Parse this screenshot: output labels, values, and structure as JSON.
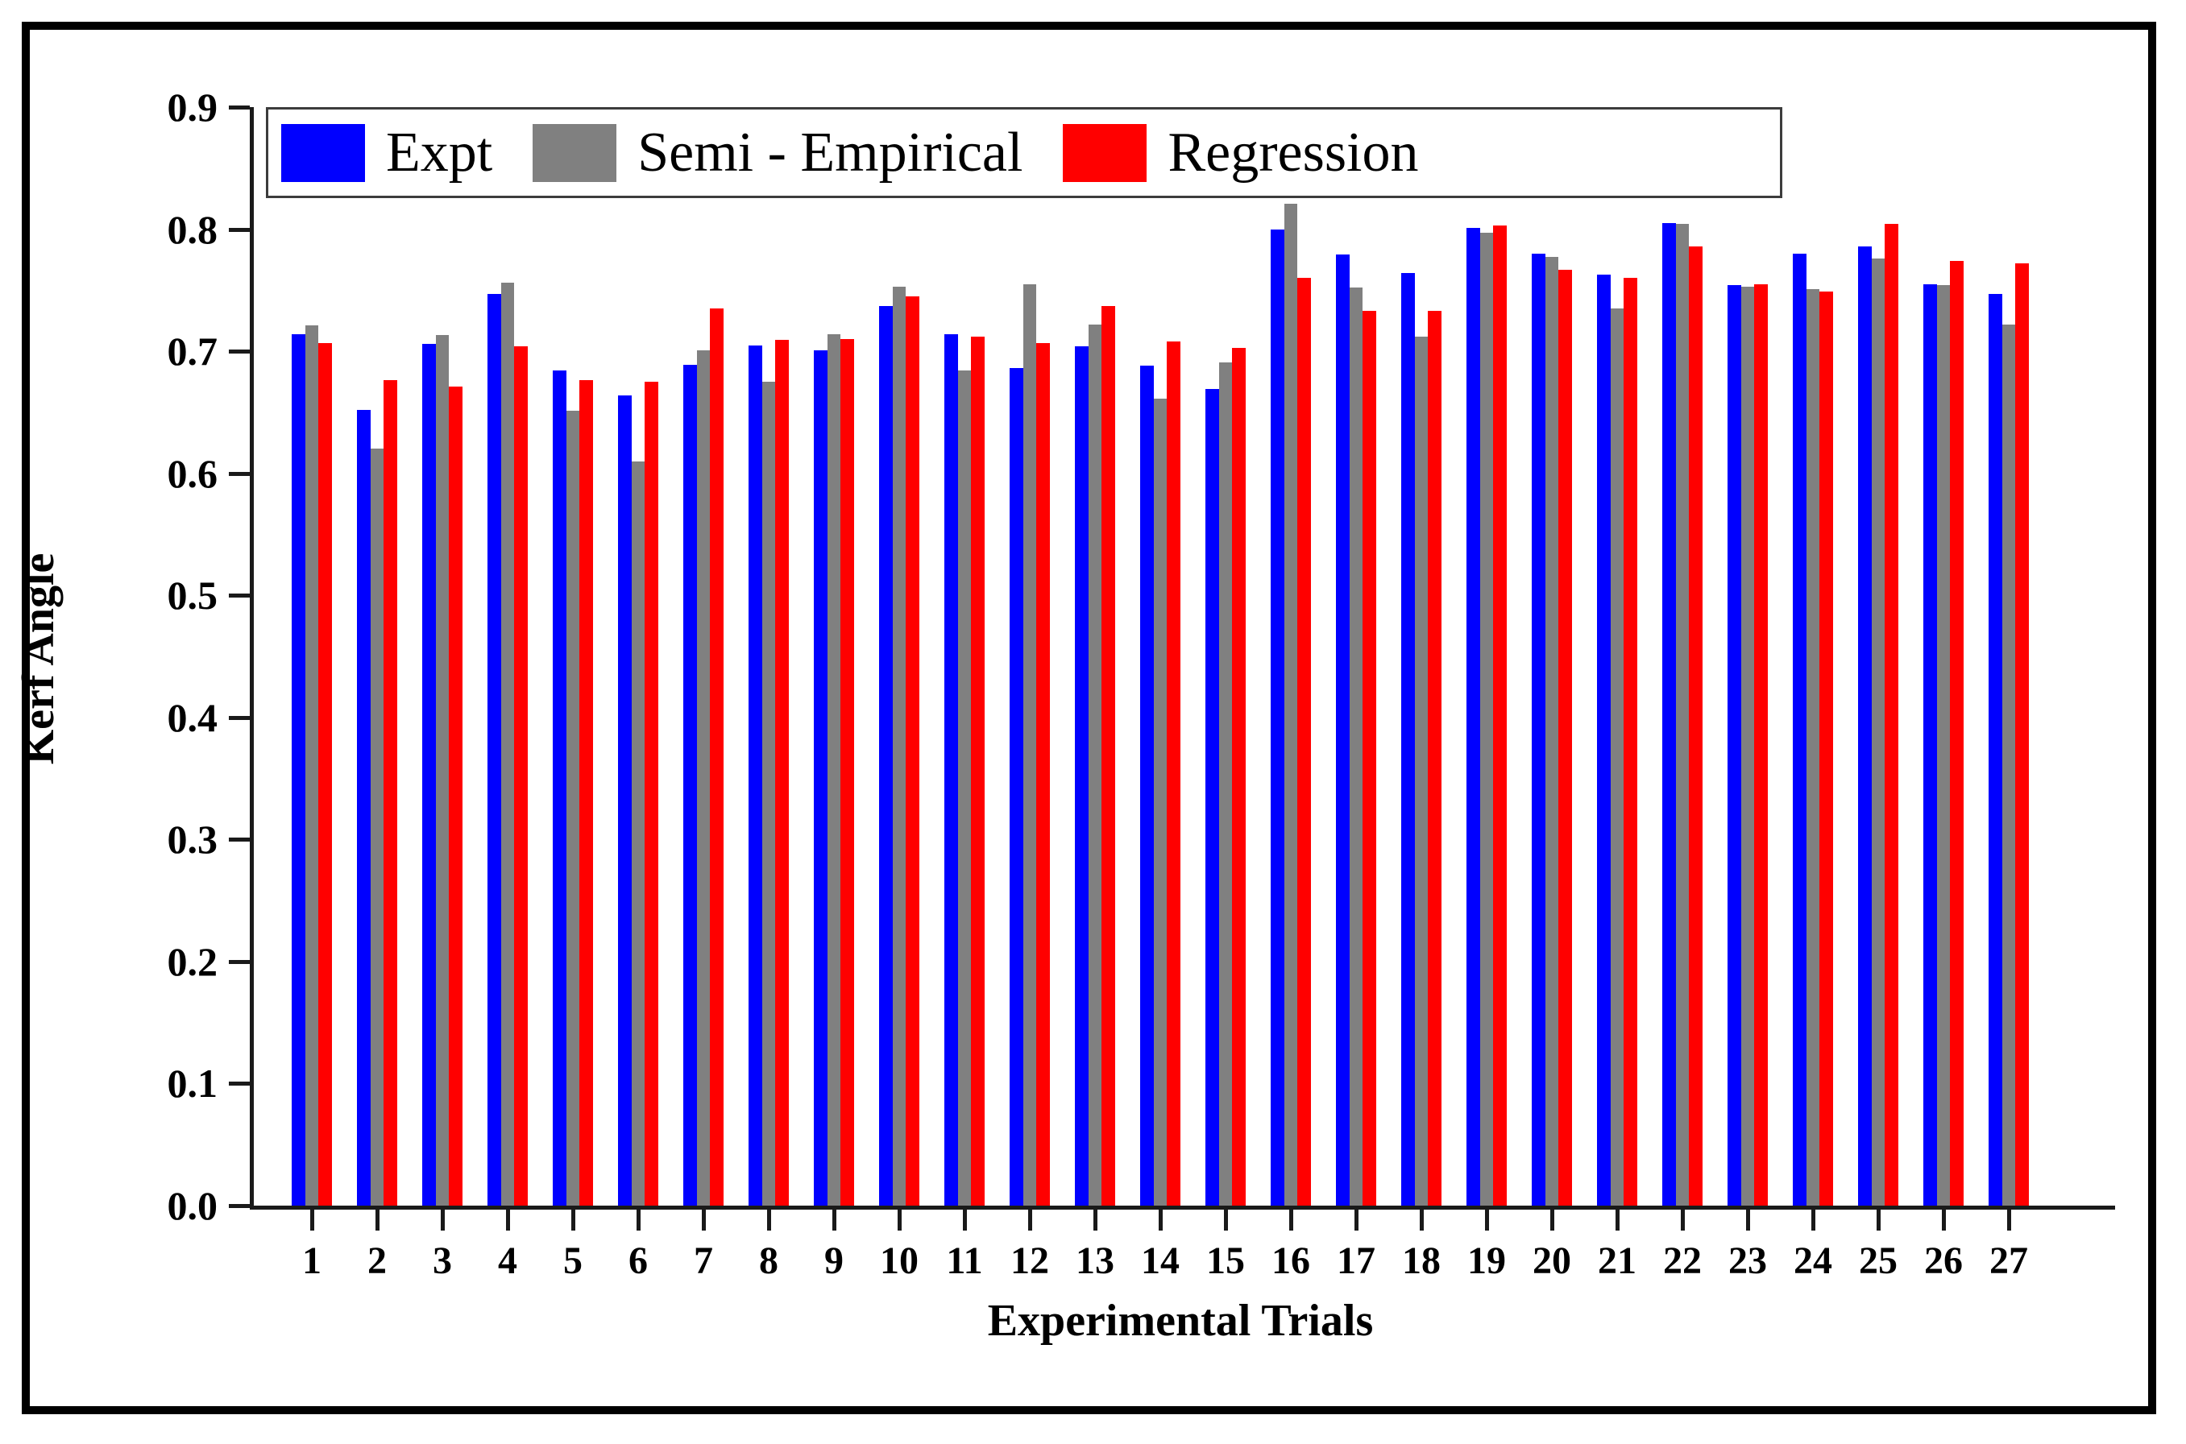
{
  "chart_data": {
    "type": "bar",
    "title": "",
    "xlabel": "Experimental Trials",
    "ylabel": "Kerf Angle",
    "categories": [
      "1",
      "2",
      "3",
      "4",
      "5",
      "6",
      "7",
      "8",
      "9",
      "10",
      "11",
      "12",
      "13",
      "14",
      "15",
      "16",
      "17",
      "18",
      "19",
      "20",
      "21",
      "22",
      "23",
      "24",
      "25",
      "26",
      "27"
    ],
    "series": [
      {
        "name": "Expt",
        "color": "#0000ff",
        "values": [
          0.714,
          0.652,
          0.706,
          0.747,
          0.684,
          0.664,
          0.689,
          0.705,
          0.701,
          0.737,
          0.714,
          0.686,
          0.704,
          0.688,
          0.669,
          0.8,
          0.779,
          0.764,
          0.801,
          0.78,
          0.763,
          0.805,
          0.754,
          0.78,
          0.786,
          0.755,
          0.747
        ]
      },
      {
        "name": "Semi - Empirical",
        "color": "#808080",
        "values": [
          0.721,
          0.62,
          0.713,
          0.756,
          0.651,
          0.61,
          0.701,
          0.675,
          0.714,
          0.753,
          0.684,
          0.755,
          0.722,
          0.661,
          0.691,
          0.821,
          0.752,
          0.712,
          0.797,
          0.777,
          0.735,
          0.804,
          0.753,
          0.751,
          0.776,
          0.754,
          0.722
        ]
      },
      {
        "name": "Regression",
        "color": "#ff0000",
        "values": [
          0.707,
          0.676,
          0.671,
          0.704,
          0.676,
          0.675,
          0.735,
          0.709,
          0.71,
          0.745,
          0.712,
          0.707,
          0.737,
          0.708,
          0.703,
          0.76,
          0.733,
          0.733,
          0.803,
          0.767,
          0.76,
          0.786,
          0.755,
          0.749,
          0.804,
          0.774,
          0.772
        ]
      }
    ],
    "ylim": [
      0.0,
      0.9
    ],
    "yticks": [
      "0.0",
      "0.1",
      "0.2",
      "0.3",
      "0.4",
      "0.5",
      "0.6",
      "0.7",
      "0.8",
      "0.9"
    ],
    "grid": false,
    "legend_position": "top",
    "axis_color": "#1a1a1a"
  }
}
